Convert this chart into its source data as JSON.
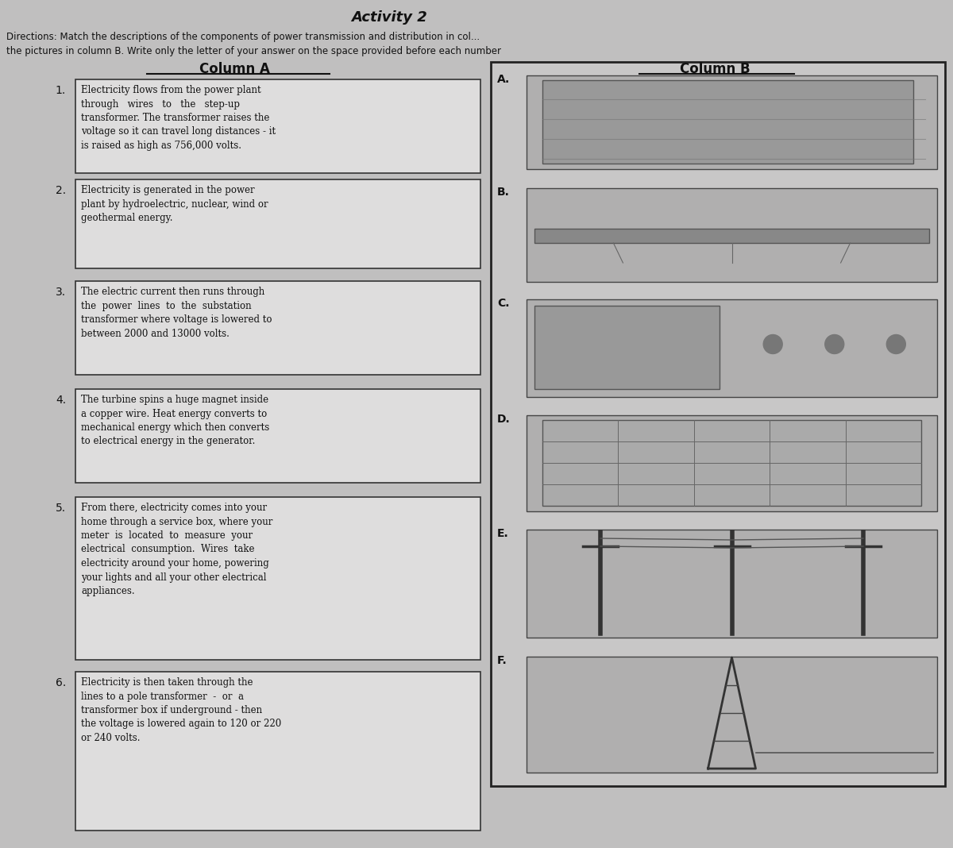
{
  "title": "Activity 2",
  "subtitle": "Directions: Match the descriptions of the components of power transmission and distribution in col...",
  "subtitle2": "the pictures in column B. Write only the letter of your answer on the space provided before each number",
  "col_a_header": "Column A",
  "col_b_header": "Column B",
  "background_color": "#c0bfbf",
  "box_background": "#dedddd",
  "box_border": "#333333",
  "items": [
    {
      "number": "1.",
      "text": "Electricity flows from the power plant\nthrough   wires   to   the   step-up\ntransformer. The transformer raises the\nvoltage so it can travel long distances - it\nis raised as high as 756,000 volts."
    },
    {
      "number": "2.",
      "text": "Electricity is generated in the power\nplant by hydroelectric, nuclear, wind or\ngeothermal energy."
    },
    {
      "number": "3.",
      "text": "The electric current then runs through\nthe  power  lines  to  the  substation\ntransformer where voltage is lowered to\nbetween 2000 and 13000 volts."
    },
    {
      "number": "4.",
      "text": "The turbine spins a huge magnet inside\na copper wire. Heat energy converts to\nmechanical energy which then converts\nto electrical energy in the generator."
    },
    {
      "number": "5.",
      "text": "From there, electricity comes into your\nhome through a service box, where your\nmeter  is  located  to  measure  your\nelectrical  consumption.  Wires  take\nelectricity around your home, powering\nyour lights and all your other electrical\nappliances."
    },
    {
      "number": "6.",
      "text": "Electricity is then taken through the\nlines to a pole transformer  -  or  a\ntransformer box if underground - then\nthe voltage is lowered again to 120 or 220\nor 240 volts."
    }
  ],
  "col_b_labels": [
    "A.",
    "B.",
    "C.",
    "D.",
    "E.",
    "F."
  ],
  "col_b_img_colors": [
    "#aaaaaa",
    "#aaaaaa",
    "#aaaaaa",
    "#aaaaaa",
    "#aaaaaa",
    "#aaaaaa"
  ]
}
